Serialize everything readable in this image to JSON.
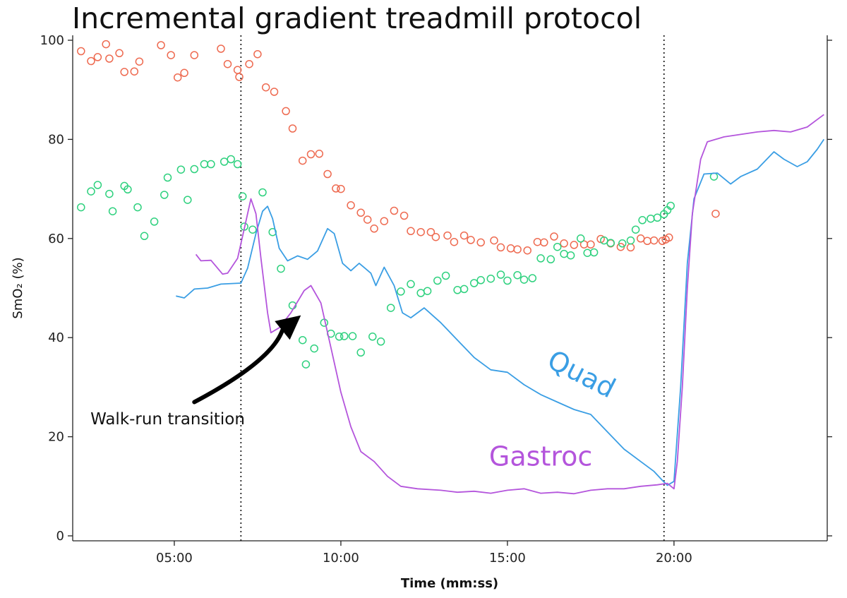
{
  "chart_data": {
    "type": "line",
    "title": "Incremental gradient treadmill protocol",
    "xlabel": "Time (mm:ss)",
    "ylabel": "SmO₂ (%)",
    "xlim": [
      1.95,
      24.6
    ],
    "ylim": [
      -1,
      101
    ],
    "x_ticks": [
      5,
      10,
      15,
      20
    ],
    "x_tick_labels": [
      "05:00",
      "10:00",
      "15:00",
      "20:00"
    ],
    "y_ticks": [
      0,
      20,
      40,
      60,
      80,
      100
    ],
    "y_tick_labels": [
      "0",
      "20",
      "40",
      "60",
      "80",
      "100"
    ],
    "grid": false,
    "vlines": [
      7.0,
      19.7
    ],
    "colors": {
      "quad": "#3a9ee4",
      "gastroc": "#b455dc",
      "red_points": "#ee6a50",
      "green_points": "#2ed17e",
      "arrow": "#000000"
    },
    "series": [
      {
        "name": "Quad",
        "kind": "line",
        "color": "#3a9ee4",
        "points": [
          [
            5.05,
            48.4
          ],
          [
            5.3,
            48.0
          ],
          [
            5.6,
            49.8
          ],
          [
            6.0,
            50.0
          ],
          [
            6.4,
            50.8
          ],
          [
            7.0,
            51.0
          ],
          [
            7.2,
            54.0
          ],
          [
            7.45,
            61.0
          ],
          [
            7.65,
            65.5
          ],
          [
            7.8,
            66.5
          ],
          [
            7.95,
            64.0
          ],
          [
            8.15,
            58.0
          ],
          [
            8.4,
            55.5
          ],
          [
            8.7,
            56.5
          ],
          [
            9.0,
            55.8
          ],
          [
            9.3,
            57.5
          ],
          [
            9.6,
            62.0
          ],
          [
            9.8,
            61.0
          ],
          [
            10.05,
            55.0
          ],
          [
            10.3,
            53.5
          ],
          [
            10.55,
            55.0
          ],
          [
            10.9,
            53.0
          ],
          [
            11.05,
            50.5
          ],
          [
            11.3,
            54.2
          ],
          [
            11.6,
            50.5
          ],
          [
            11.85,
            45.0
          ],
          [
            12.1,
            44.0
          ],
          [
            12.5,
            46.0
          ],
          [
            13.0,
            43.0
          ],
          [
            13.5,
            39.5
          ],
          [
            14.0,
            36.0
          ],
          [
            14.5,
            33.5
          ],
          [
            15.0,
            33.0
          ],
          [
            15.5,
            30.5
          ],
          [
            16.0,
            28.5
          ],
          [
            16.5,
            27.0
          ],
          [
            17.0,
            25.5
          ],
          [
            17.5,
            24.5
          ],
          [
            18.0,
            21.0
          ],
          [
            18.5,
            17.5
          ],
          [
            19.0,
            15.0
          ],
          [
            19.4,
            13.0
          ],
          [
            19.65,
            11.2
          ],
          [
            19.8,
            10.2
          ],
          [
            20.0,
            11.0
          ],
          [
            20.2,
            30.0
          ],
          [
            20.4,
            55.0
          ],
          [
            20.6,
            68.0
          ],
          [
            20.9,
            73.0
          ],
          [
            21.3,
            73.2
          ],
          [
            21.7,
            71.0
          ],
          [
            22.0,
            72.5
          ],
          [
            22.5,
            74.0
          ],
          [
            23.0,
            77.5
          ],
          [
            23.3,
            76.0
          ],
          [
            23.7,
            74.5
          ],
          [
            24.0,
            75.5
          ],
          [
            24.3,
            78.0
          ],
          [
            24.5,
            80.0
          ]
        ]
      },
      {
        "name": "Gastroc",
        "kind": "line",
        "color": "#b455dc",
        "points": [
          [
            5.65,
            56.8
          ],
          [
            5.8,
            55.5
          ],
          [
            6.1,
            55.6
          ],
          [
            6.45,
            52.8
          ],
          [
            6.6,
            53.0
          ],
          [
            6.9,
            56.0
          ],
          [
            7.1,
            62.0
          ],
          [
            7.3,
            68.0
          ],
          [
            7.45,
            65.0
          ],
          [
            7.6,
            56.0
          ],
          [
            7.8,
            45.0
          ],
          [
            7.9,
            41.0
          ],
          [
            8.15,
            42.0
          ],
          [
            8.5,
            45.0
          ],
          [
            8.9,
            49.5
          ],
          [
            9.1,
            50.5
          ],
          [
            9.4,
            47.0
          ],
          [
            9.7,
            38.0
          ],
          [
            10.0,
            29.0
          ],
          [
            10.3,
            22.0
          ],
          [
            10.6,
            17.0
          ],
          [
            11.0,
            15.0
          ],
          [
            11.4,
            12.0
          ],
          [
            11.8,
            10.0
          ],
          [
            12.3,
            9.5
          ],
          [
            13.0,
            9.2
          ],
          [
            13.5,
            8.8
          ],
          [
            14.0,
            9.0
          ],
          [
            14.5,
            8.6
          ],
          [
            15.0,
            9.2
          ],
          [
            15.5,
            9.5
          ],
          [
            16.0,
            8.6
          ],
          [
            16.5,
            8.8
          ],
          [
            17.0,
            8.5
          ],
          [
            17.5,
            9.2
          ],
          [
            18.0,
            9.5
          ],
          [
            18.5,
            9.5
          ],
          [
            19.0,
            10.0
          ],
          [
            19.5,
            10.3
          ],
          [
            19.8,
            10.6
          ],
          [
            20.0,
            9.5
          ],
          [
            20.1,
            15.0
          ],
          [
            20.25,
            30.0
          ],
          [
            20.4,
            50.0
          ],
          [
            20.55,
            65.0
          ],
          [
            20.8,
            76.0
          ],
          [
            21.0,
            79.5
          ],
          [
            21.5,
            80.5
          ],
          [
            22.0,
            81.0
          ],
          [
            22.5,
            81.5
          ],
          [
            23.0,
            81.8
          ],
          [
            23.5,
            81.5
          ],
          [
            24.0,
            82.5
          ],
          [
            24.3,
            84.0
          ],
          [
            24.5,
            85.0
          ]
        ]
      },
      {
        "name": "",
        "kind": "scatter",
        "color": "#ee6a50",
        "points": [
          [
            2.2,
            97.8
          ],
          [
            2.5,
            95.8
          ],
          [
            2.7,
            96.6
          ],
          [
            2.95,
            99.2
          ],
          [
            3.05,
            96.3
          ],
          [
            3.35,
            97.4
          ],
          [
            3.5,
            93.6
          ],
          [
            3.8,
            93.7
          ],
          [
            3.95,
            95.7
          ],
          [
            4.6,
            99.0
          ],
          [
            4.9,
            97.0
          ],
          [
            5.1,
            92.5
          ],
          [
            5.3,
            93.4
          ],
          [
            5.6,
            97.0
          ],
          [
            6.4,
            98.3
          ],
          [
            6.6,
            95.2
          ],
          [
            6.9,
            94.0
          ],
          [
            6.95,
            92.6
          ],
          [
            7.25,
            95.2
          ],
          [
            7.5,
            97.2
          ],
          [
            7.75,
            90.5
          ],
          [
            8.0,
            89.6
          ],
          [
            8.35,
            85.7
          ],
          [
            8.55,
            82.2
          ],
          [
            8.85,
            75.7
          ],
          [
            9.1,
            77.0
          ],
          [
            9.35,
            77.1
          ],
          [
            9.6,
            73.0
          ],
          [
            9.85,
            70.1
          ],
          [
            10.0,
            70.0
          ],
          [
            10.3,
            66.7
          ],
          [
            10.6,
            65.2
          ],
          [
            10.8,
            63.8
          ],
          [
            11.0,
            62.0
          ],
          [
            11.3,
            63.5
          ],
          [
            11.6,
            65.6
          ],
          [
            11.9,
            64.6
          ],
          [
            12.1,
            61.5
          ],
          [
            12.4,
            61.3
          ],
          [
            12.7,
            61.3
          ],
          [
            12.85,
            60.3
          ],
          [
            13.2,
            60.6
          ],
          [
            13.4,
            59.3
          ],
          [
            13.7,
            60.6
          ],
          [
            13.9,
            59.7
          ],
          [
            14.2,
            59.2
          ],
          [
            14.6,
            59.6
          ],
          [
            14.8,
            58.2
          ],
          [
            15.1,
            58.0
          ],
          [
            15.3,
            57.8
          ],
          [
            15.6,
            57.6
          ],
          [
            15.9,
            59.3
          ],
          [
            16.1,
            59.2
          ],
          [
            16.4,
            60.4
          ],
          [
            16.7,
            59.0
          ],
          [
            17.0,
            58.7
          ],
          [
            17.3,
            58.8
          ],
          [
            17.5,
            58.8
          ],
          [
            17.8,
            59.9
          ],
          [
            18.1,
            59.0
          ],
          [
            18.4,
            58.3
          ],
          [
            18.7,
            58.2
          ],
          [
            19.0,
            60.0
          ],
          [
            19.2,
            59.5
          ],
          [
            19.4,
            59.6
          ],
          [
            19.65,
            59.5
          ],
          [
            19.75,
            59.8
          ],
          [
            19.85,
            60.2
          ],
          [
            21.25,
            65.0
          ]
        ]
      },
      {
        "name": "",
        "kind": "scatter",
        "color": "#2ed17e",
        "points": [
          [
            2.2,
            66.3
          ],
          [
            2.5,
            69.5
          ],
          [
            2.7,
            70.8
          ],
          [
            3.05,
            69.0
          ],
          [
            3.15,
            65.5
          ],
          [
            3.5,
            70.6
          ],
          [
            3.6,
            69.9
          ],
          [
            3.9,
            66.3
          ],
          [
            4.1,
            60.5
          ],
          [
            4.4,
            63.4
          ],
          [
            4.7,
            68.8
          ],
          [
            4.8,
            72.3
          ],
          [
            5.2,
            73.9
          ],
          [
            5.4,
            67.8
          ],
          [
            5.6,
            74.0
          ],
          [
            5.9,
            75.0
          ],
          [
            6.1,
            75.0
          ],
          [
            6.5,
            75.5
          ],
          [
            6.7,
            76.0
          ],
          [
            6.9,
            75.0
          ],
          [
            7.05,
            68.5
          ],
          [
            7.1,
            62.4
          ],
          [
            7.35,
            61.8
          ],
          [
            7.65,
            69.3
          ],
          [
            7.95,
            61.3
          ],
          [
            8.2,
            53.9
          ],
          [
            8.55,
            46.5
          ],
          [
            8.85,
            39.5
          ],
          [
            8.95,
            34.6
          ],
          [
            9.2,
            37.8
          ],
          [
            9.5,
            43.0
          ],
          [
            9.7,
            40.8
          ],
          [
            9.95,
            40.2
          ],
          [
            10.1,
            40.3
          ],
          [
            10.35,
            40.3
          ],
          [
            10.6,
            37.0
          ],
          [
            10.95,
            40.2
          ],
          [
            11.2,
            39.2
          ],
          [
            11.5,
            46.0
          ],
          [
            11.8,
            49.3
          ],
          [
            12.1,
            50.8
          ],
          [
            12.4,
            49.0
          ],
          [
            12.6,
            49.4
          ],
          [
            12.9,
            51.5
          ],
          [
            13.15,
            52.5
          ],
          [
            13.5,
            49.6
          ],
          [
            13.7,
            49.8
          ],
          [
            14.0,
            51.0
          ],
          [
            14.2,
            51.6
          ],
          [
            14.5,
            51.9
          ],
          [
            14.8,
            52.7
          ],
          [
            15.0,
            51.5
          ],
          [
            15.3,
            52.6
          ],
          [
            15.5,
            51.7
          ],
          [
            15.75,
            52.0
          ],
          [
            16.0,
            56.0
          ],
          [
            16.3,
            55.8
          ],
          [
            16.5,
            58.3
          ],
          [
            16.7,
            56.9
          ],
          [
            16.9,
            56.6
          ],
          [
            17.2,
            60.0
          ],
          [
            17.4,
            57.1
          ],
          [
            17.6,
            57.2
          ],
          [
            17.9,
            59.6
          ],
          [
            18.1,
            59.1
          ],
          [
            18.45,
            59.0
          ],
          [
            18.7,
            59.6
          ],
          [
            18.85,
            61.8
          ],
          [
            19.05,
            63.7
          ],
          [
            19.3,
            64.0
          ],
          [
            19.5,
            64.2
          ],
          [
            19.7,
            64.9
          ],
          [
            19.8,
            65.7
          ],
          [
            19.9,
            66.6
          ],
          [
            21.2,
            72.5
          ]
        ]
      }
    ],
    "annotations": [
      {
        "text": "Walk-run transition",
        "x": 4.8,
        "y": 22.5
      },
      {
        "text": "Quad",
        "x": 17.1,
        "y": 31.0,
        "color": "#3a9ee4",
        "rotate": 27
      },
      {
        "text": "Gastroc",
        "x": 16.0,
        "y": 14.2,
        "color": "#b455dc",
        "rotate": 0
      }
    ],
    "arrow": {
      "from": [
        5.6,
        27.0
      ],
      "to": [
        8.8,
        44.5
      ]
    }
  }
}
